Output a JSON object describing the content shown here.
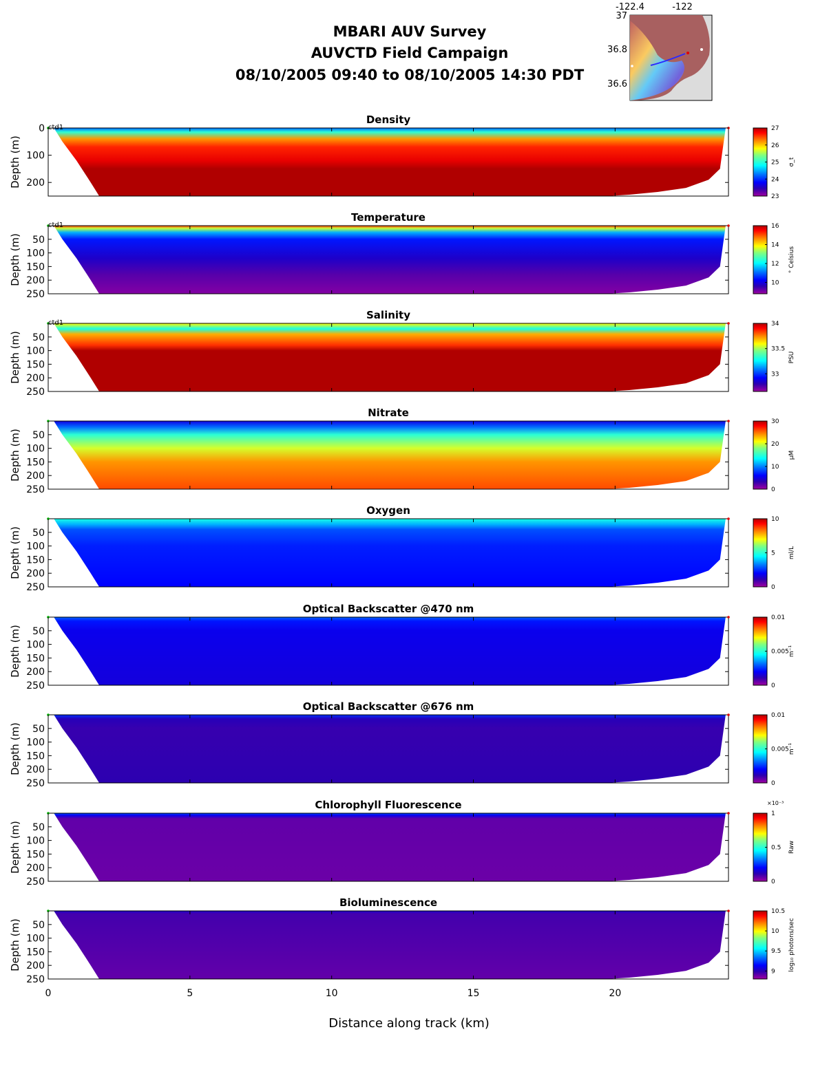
{
  "header": {
    "title_line1": "MBARI AUV Survey",
    "title_line2": "AUVCTD Field Campaign",
    "title_line3": "08/10/2005 09:40  to 08/10/2005 14:30 PDT"
  },
  "inset_map": {
    "lon_ticks": [
      "-122.4",
      "-122"
    ],
    "lat_ticks": [
      "37",
      "36.8",
      "36.6"
    ]
  },
  "chart_data": {
    "type": "heatmap",
    "xlabel": "Distance along track (km)",
    "xlim": [
      0,
      24
    ],
    "xticks": [
      0,
      5,
      10,
      15,
      20
    ],
    "ylabel": "Depth (m)",
    "ylim": [
      0,
      250
    ],
    "colormap": "jet",
    "panels": [
      {
        "title": "Density",
        "label": "ctd1",
        "yticks": [
          "0",
          "100",
          "200"
        ],
        "cbar_unit": "σ_t",
        "cbar_ticks": [
          "23",
          "24",
          "25",
          "26",
          "27"
        ],
        "cbar_range": [
          23,
          27
        ],
        "profile": [
          [
            0,
            24.2
          ],
          [
            15,
            25.0
          ],
          [
            40,
            26.2
          ],
          [
            70,
            26.6
          ],
          [
            120,
            26.8
          ],
          [
            150,
            27.0
          ],
          [
            250,
            27.1
          ]
        ]
      },
      {
        "title": "Temperature",
        "label": "ctd1",
        "yticks": [
          "50",
          "100",
          "150",
          "200",
          "250"
        ],
        "cbar_unit": "° Celsius",
        "cbar_ticks": [
          "10",
          "12",
          "14",
          "16"
        ],
        "cbar_range": [
          8.8,
          16
        ],
        "profile": [
          [
            0,
            15.2
          ],
          [
            10,
            13.5
          ],
          [
            25,
            11.5
          ],
          [
            50,
            10.4
          ],
          [
            120,
            9.8
          ],
          [
            180,
            9.3
          ],
          [
            250,
            9.0
          ]
        ]
      },
      {
        "title": "Salinity",
        "label": "ctd1",
        "yticks": [
          "50",
          "100",
          "150",
          "200",
          "250"
        ],
        "cbar_unit": "PSU",
        "cbar_ticks": [
          "33",
          "33.5",
          "34"
        ],
        "cbar_range": [
          32.65,
          34
        ],
        "profile": [
          [
            0,
            33.6
          ],
          [
            20,
            33.3
          ],
          [
            40,
            33.7
          ],
          [
            80,
            33.85
          ],
          [
            100,
            34.0
          ],
          [
            250,
            34.0
          ]
        ]
      },
      {
        "title": "Nitrate",
        "label": "",
        "yticks": [
          "50",
          "100",
          "150",
          "200",
          "250"
        ],
        "cbar_unit": "μM",
        "cbar_ticks": [
          "0",
          "10",
          "20",
          "30"
        ],
        "cbar_range": [
          0,
          30
        ],
        "profile": [
          [
            0,
            5
          ],
          [
            20,
            9
          ],
          [
            50,
            15
          ],
          [
            100,
            20
          ],
          [
            150,
            24
          ],
          [
            250,
            26
          ]
        ]
      },
      {
        "title": "Oxygen",
        "label": "",
        "yticks": [
          "50",
          "100",
          "150",
          "200",
          "250"
        ],
        "cbar_unit": "ml/L",
        "cbar_ticks": [
          "0",
          "5",
          "10"
        ],
        "cbar_range": [
          0,
          10
        ],
        "profile": [
          [
            0,
            4.8
          ],
          [
            20,
            3.8
          ],
          [
            40,
            2.8
          ],
          [
            100,
            2.3
          ],
          [
            250,
            2.0
          ]
        ]
      },
      {
        "title": "Optical Backscatter @470 nm",
        "label": "",
        "yticks": [
          "50",
          "100",
          "150",
          "200",
          "250"
        ],
        "cbar_unit": "m⁻¹",
        "cbar_ticks": [
          "0",
          "0.005",
          "0.01"
        ],
        "cbar_range": [
          0,
          0.01
        ],
        "profile": [
          [
            0,
            0.003
          ],
          [
            15,
            0.0022
          ],
          [
            50,
            0.0018
          ],
          [
            250,
            0.0016
          ]
        ]
      },
      {
        "title": "Optical Backscatter @676 nm",
        "label": "",
        "yticks": [
          "50",
          "100",
          "150",
          "200",
          "250"
        ],
        "cbar_unit": "m⁻¹",
        "cbar_ticks": [
          "0",
          "0.005",
          "0.01"
        ],
        "cbar_range": [
          0,
          0.01
        ],
        "profile": [
          [
            0,
            0.0025
          ],
          [
            15,
            0.0012
          ],
          [
            50,
            0.001
          ],
          [
            250,
            0.0011
          ]
        ]
      },
      {
        "title": "Chlorophyll Fluorescence",
        "label": "",
        "yticks": [
          "50",
          "100",
          "150",
          "200",
          "250"
        ],
        "cbar_unit": "Raw",
        "cbar_exponent": "×10⁻³",
        "cbar_ticks": [
          "0",
          "0.5",
          "1"
        ],
        "cbar_range": [
          0,
          1
        ],
        "profile": [
          [
            0,
            0.28
          ],
          [
            8,
            0.18
          ],
          [
            20,
            0.06
          ],
          [
            250,
            0.05
          ]
        ]
      },
      {
        "title": "Bioluminescence",
        "label": "",
        "yticks": [
          "50",
          "100",
          "150",
          "200",
          "250"
        ],
        "cbar_unit": "log₁₀ photons/sec",
        "cbar_ticks": [
          "9",
          "9.5",
          "10",
          "10.5"
        ],
        "cbar_range": [
          8.8,
          10.5
        ],
        "profile": [
          [
            0,
            9.05
          ],
          [
            10,
            8.95
          ],
          [
            250,
            8.9
          ]
        ]
      }
    ],
    "bottom_profile": [
      [
        0,
        0
      ],
      [
        0.5,
        50
      ],
      [
        1.0,
        120
      ],
      [
        1.5,
        200
      ],
      [
        1.8,
        250
      ],
      [
        19.7,
        250
      ],
      [
        20.5,
        245
      ],
      [
        21.5,
        235
      ],
      [
        22.5,
        220
      ],
      [
        23.3,
        190
      ],
      [
        23.7,
        150
      ],
      [
        23.9,
        0
      ]
    ]
  }
}
